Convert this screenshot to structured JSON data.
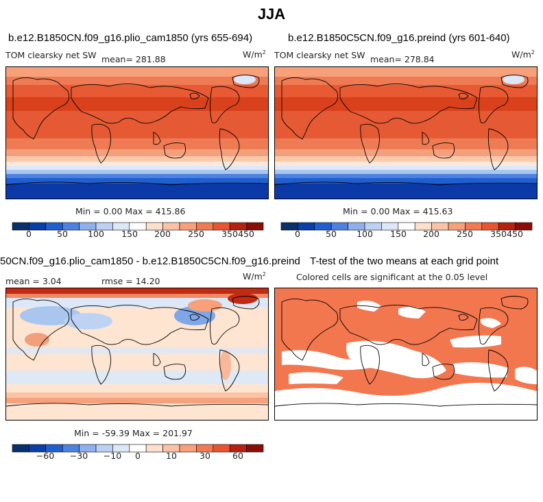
{
  "page_title": "JJA",
  "chart_data": [
    {
      "type": "heatmap",
      "panel": "top-left",
      "title": "b.e12.B1850CN.f09_g16.plio_cam1850 (yrs 655-694)",
      "subtitle": "TOM clearsky net SW",
      "mean_label": "mean= 281.88",
      "units": "W/m",
      "units_exp": "2",
      "min_max_label": "Min =    0.00 Max = 415.86",
      "colorbar_ticks": [
        "0",
        "50",
        "100",
        "150",
        "200",
        "250",
        "350",
        "450"
      ],
      "colorbar_colors": [
        "#08306b",
        "#0a3ea8",
        "#1f5fd0",
        "#4e82e0",
        "#8fb0ec",
        "#bcd0f3",
        "#dce7f8",
        "#fde0cc",
        "#fbc2a5",
        "#f7a07a",
        "#f27a52",
        "#e85530",
        "#d83a1a",
        "#b52310",
        "#8b0e06"
      ]
    },
    {
      "type": "heatmap",
      "panel": "top-right",
      "title": "b.e12.B1850C5CN.f09_g16.preind (yrs 601-640)",
      "subtitle": "TOM clearsky net SW",
      "mean_label": "mean= 278.84",
      "units": "W/m",
      "units_exp": "2",
      "min_max_label": "Min =    0.00 Max = 415.63",
      "colorbar_ticks": [
        "0",
        "50",
        "100",
        "150",
        "200",
        "250",
        "350",
        "450"
      ]
    },
    {
      "type": "heatmap",
      "panel": "bottom-left",
      "title": "50CN.f09_g16.plio_cam1850 - b.e12.B1850C5CN.f09_g16.preind",
      "mean_label": "mean =    3.04",
      "rmse_label": "rmse =  14.20",
      "units": "W/m",
      "units_exp": "2",
      "min_max_label": "Min = -59.39 Max = 201.97",
      "colorbar_ticks": [
        "−60",
        "−30",
        "−10",
        "0",
        "10",
        "30",
        "60"
      ]
    },
    {
      "type": "heatmap",
      "panel": "bottom-right",
      "title": "T-test of the two means at each grid point",
      "subtitle": "Colored cells are significant at the 0.05 level"
    }
  ]
}
